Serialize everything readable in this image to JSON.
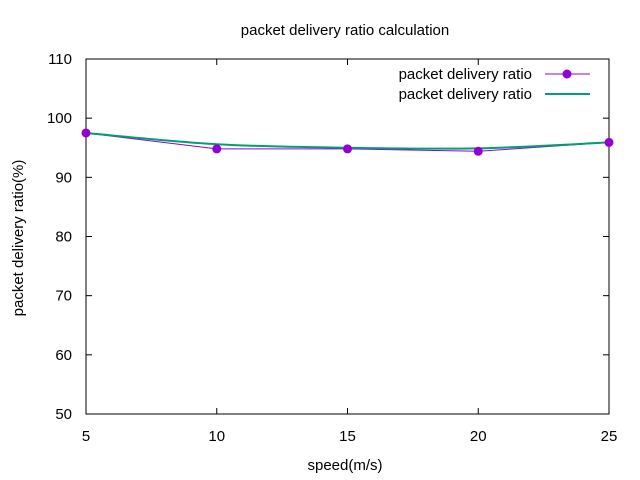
{
  "chart_data": {
    "type": "line",
    "title": "packet delivery ratio calculation",
    "xlabel": "speed(m/s)",
    "ylabel": "packet delivery ratio(%)",
    "xlim": [
      5,
      25
    ],
    "ylim": [
      50,
      110
    ],
    "xticks": [
      "5",
      "10",
      "15",
      "20",
      "25"
    ],
    "yticks": [
      "50",
      "60",
      "70",
      "80",
      "90",
      "100",
      "110"
    ],
    "grid": false,
    "legend_position": "top-right",
    "x": [
      5,
      10,
      15,
      20,
      25
    ],
    "series": [
      {
        "name": "packet delivery ratio",
        "style": "line-points",
        "color": "#9400d3",
        "values": [
          97.5,
          94.8,
          94.8,
          94.4,
          95.9
        ]
      },
      {
        "name": "packet delivery ratio",
        "style": "smooth-line",
        "color": "#009e73",
        "values": [
          97.5,
          95.6,
          95.0,
          94.9,
          95.9
        ]
      }
    ]
  }
}
